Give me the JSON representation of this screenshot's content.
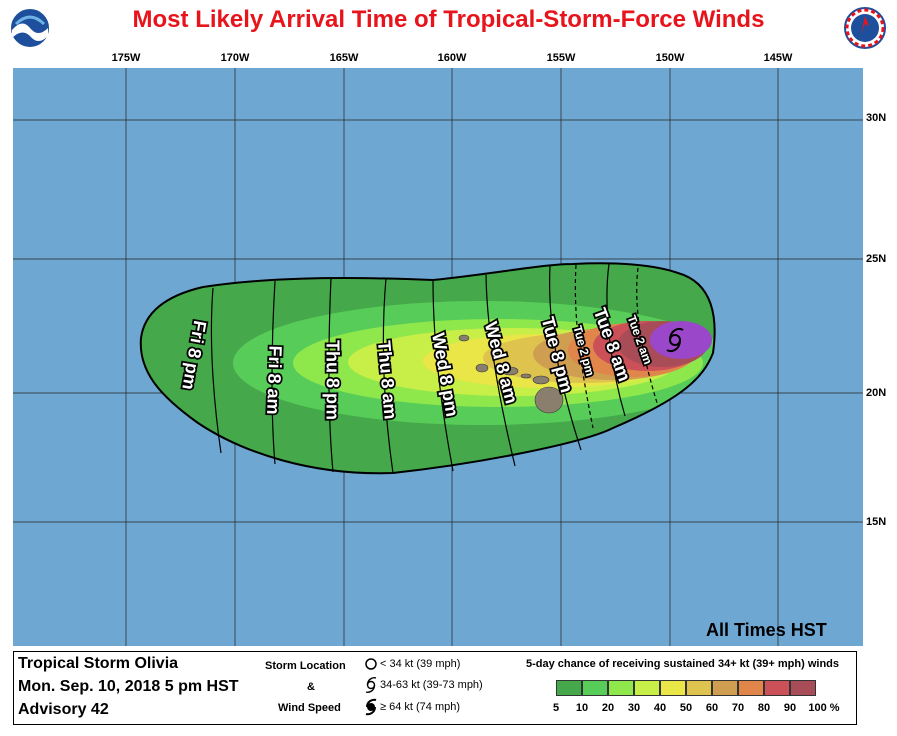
{
  "title": "Most Likely Arrival Time of Tropical-Storm-Force Winds",
  "logos": {
    "left": "NOAA",
    "right": "NATIONAL WEATHER SERVICE"
  },
  "longitudes": [
    "175W",
    "170W",
    "165W",
    "160W",
    "155W",
    "150W",
    "145W"
  ],
  "latitudes": [
    "30N",
    "25N",
    "20N",
    "15N"
  ],
  "arrival_labels": {
    "fri_8pm": "Fri 8 pm",
    "fri_8am": "Fri 8 am",
    "thu_8pm": "Thu 8 pm",
    "thu_8am": "Thu 8 am",
    "wed_8pm": "Wed 8 pm",
    "wed_8am": "Wed 8 am",
    "tue_8pm": "Tue 8 pm",
    "tue_2pm": "Tue 2 pm",
    "tue_8am": "Tue 8 am",
    "tue_2am": "Tue 2 am"
  },
  "all_times": "All Times HST",
  "storm_info": {
    "name": "Tropical Storm Olivia",
    "time": "Mon. Sep. 10, 2018  5 pm HST",
    "advisory": "Advisory 42"
  },
  "storm_key": {
    "header1": "Storm Location",
    "amp": "&",
    "header2": "Wind Speed",
    "items": [
      "< 34 kt (39 mph)",
      "34-63 kt (39-73 mph)",
      "≥ 64 kt (74 mph)"
    ]
  },
  "probability_legend": {
    "title": "5-day chance of receiving sustained 34+ kt (39+ mph) winds",
    "ticks": [
      "5",
      "10",
      "20",
      "30",
      "40",
      "50",
      "60",
      "70",
      "80",
      "90",
      "100 %"
    ],
    "colors": [
      "#45a84a",
      "#58cc58",
      "#8ee84c",
      "#c8ee48",
      "#eae648",
      "#dec44e",
      "#d09e50",
      "#e0864a",
      "#cc5058",
      "#a84c58",
      "#9b47c9"
    ]
  },
  "colors": {
    "title_red": "#e8141c",
    "ocean": "#6fa7d3",
    "land": "#8a7e6c",
    "green_outer": "#45a84a",
    "storm_center": "#7a2fb8"
  }
}
